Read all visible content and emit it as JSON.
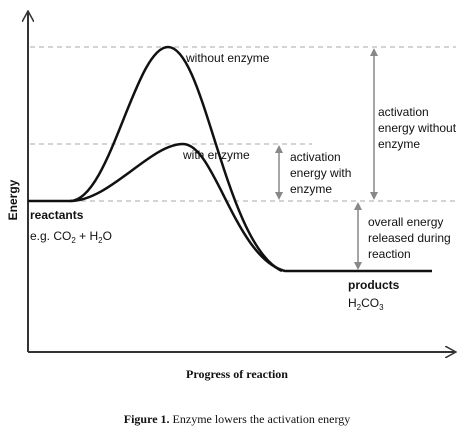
{
  "axes": {
    "y_label": "Energy",
    "x_label": "Progress of reaction"
  },
  "curves": {
    "without_enzyme": "without enzyme",
    "with_enzyme": "with enzyme"
  },
  "annotations": {
    "activation_without": [
      "activation",
      "energy without",
      "enzyme"
    ],
    "activation_with": [
      "activation",
      "energy with",
      "enzyme"
    ],
    "overall_released": [
      "overall energy",
      "released during",
      "reaction"
    ]
  },
  "reactants": {
    "label": "reactants",
    "formula": [
      "e.g. CO",
      "2",
      " + H",
      "2",
      "O"
    ]
  },
  "products": {
    "label": "products",
    "formula": [
      "H",
      "2",
      "CO",
      "3"
    ]
  },
  "caption": {
    "label": "Figure 1.",
    "text": " Enzyme lowers the activation energy"
  }
}
